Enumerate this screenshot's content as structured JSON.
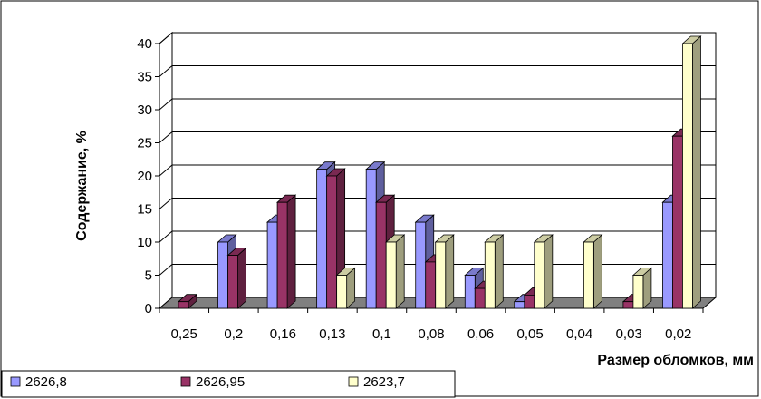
{
  "chart_data": {
    "type": "bar",
    "title": "",
    "xlabel": "Размер обломков, мм",
    "ylabel": "Содержание, %",
    "ylim": [
      0,
      40
    ],
    "yticks": [
      "0",
      "5",
      "10",
      "15",
      "20",
      "25",
      "30",
      "35",
      "40"
    ],
    "categories": [
      "0,25",
      "0,2",
      "0,16",
      "0,13",
      "0,1",
      "0,08",
      "0,06",
      "0,05",
      "0,04",
      "0,03",
      "0,02"
    ],
    "series": [
      {
        "name": "2626,8",
        "color": "#9999ff",
        "values": [
          0,
          10,
          13,
          21,
          21,
          13,
          5,
          1,
          0,
          0,
          16
        ]
      },
      {
        "name": "2626,95",
        "color": "#993366",
        "values": [
          1,
          8,
          16,
          20,
          16,
          7,
          3,
          2,
          0,
          1,
          26
        ]
      },
      {
        "name": "2623,7",
        "color": "#ffffcc",
        "values": [
          0,
          0,
          0,
          5,
          10,
          10,
          10,
          10,
          10,
          5,
          40
        ]
      }
    ],
    "grid": true,
    "legend_position": "bottom"
  }
}
